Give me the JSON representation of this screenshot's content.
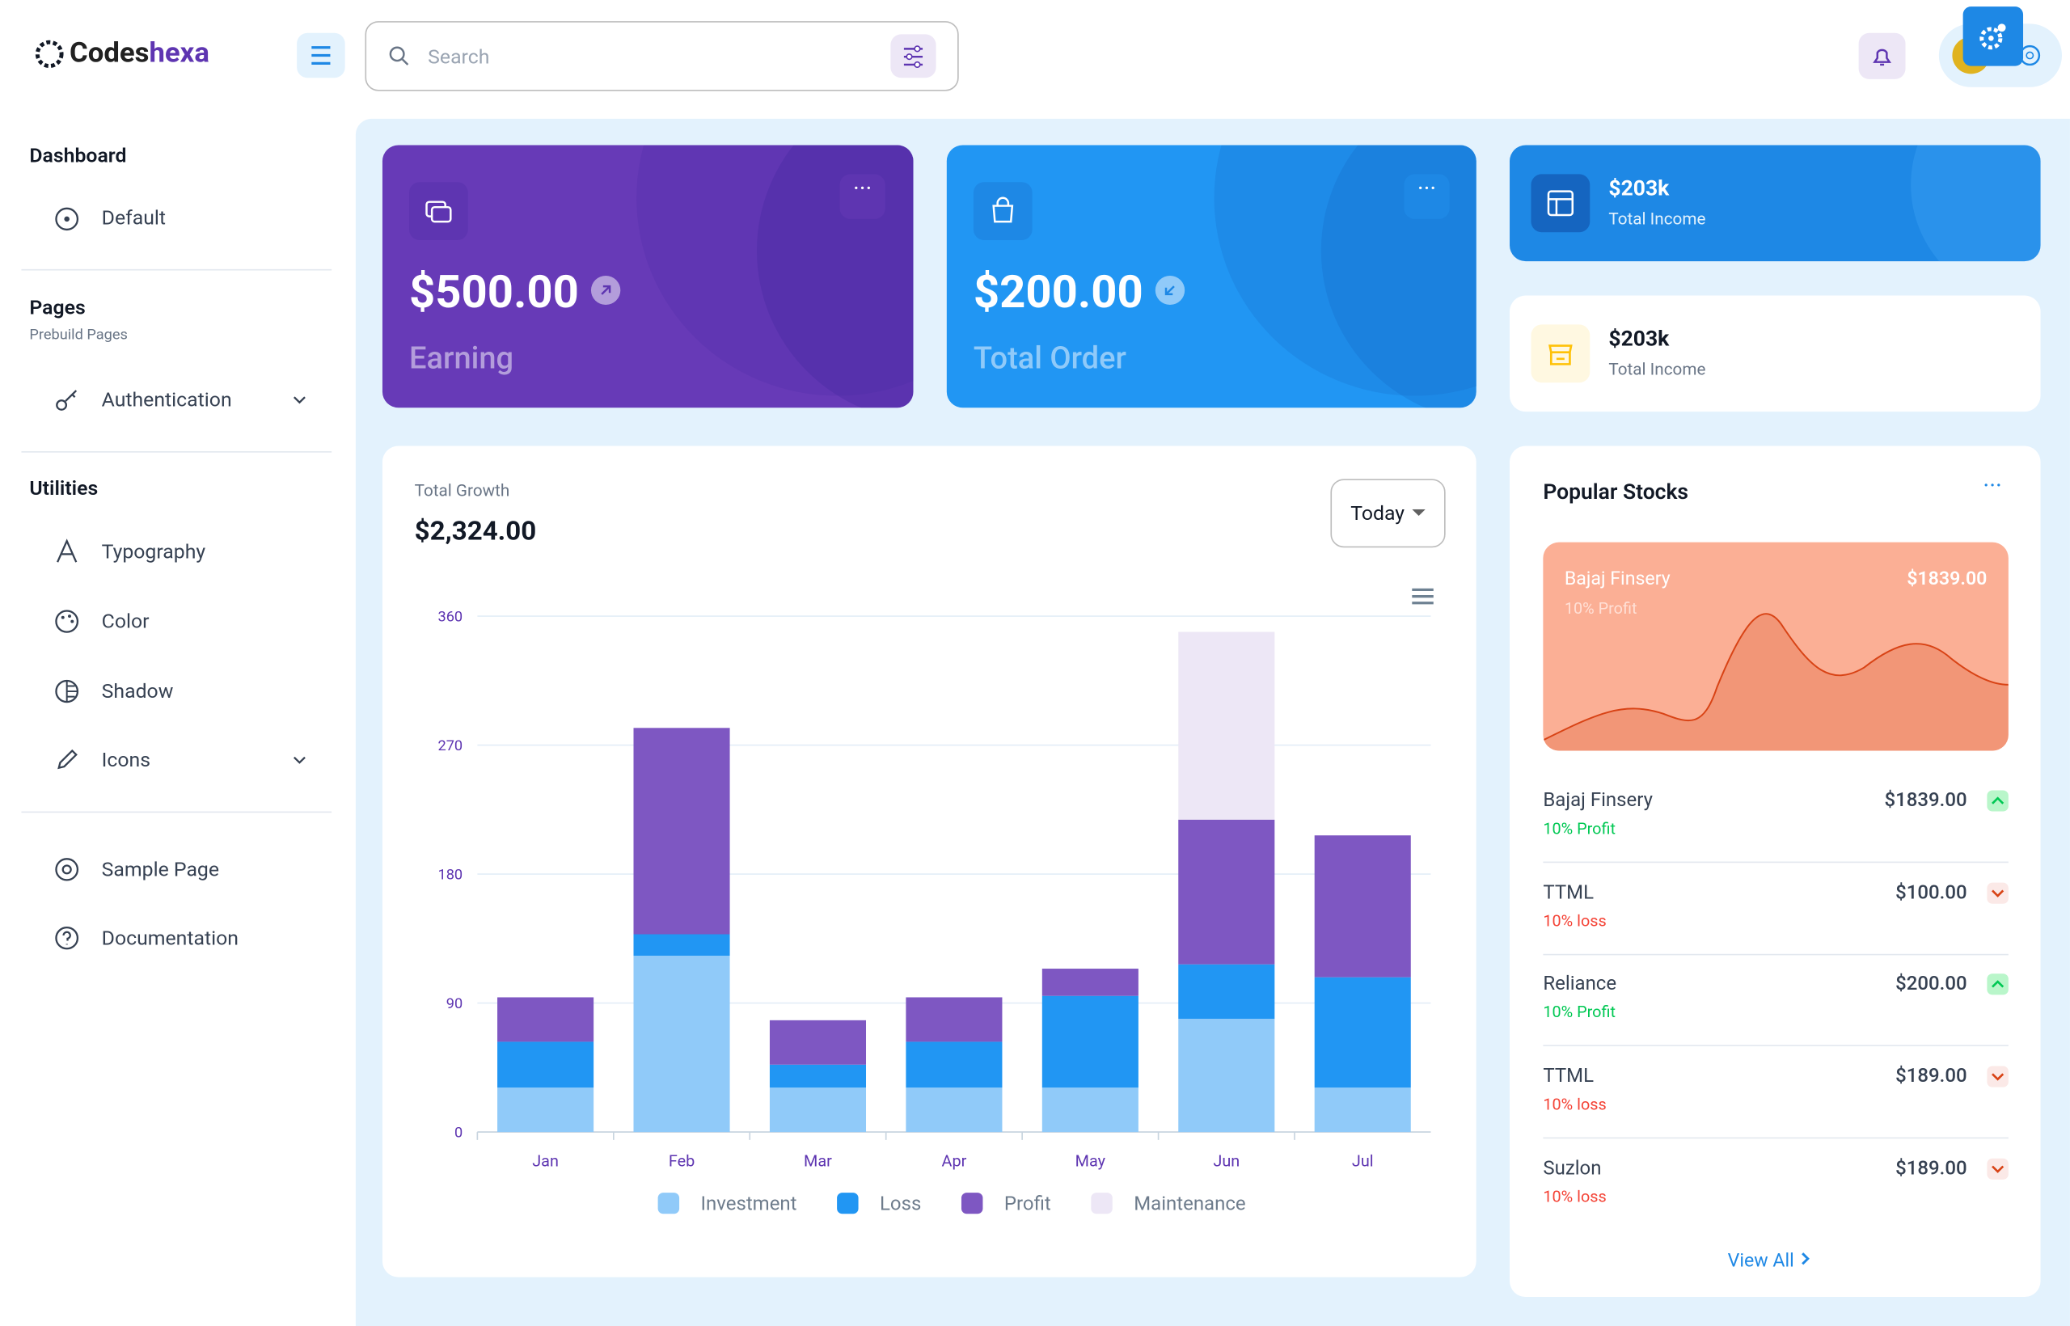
{
  "header": {
    "brand_prefix": "Codes",
    "brand_suffix": "hexa",
    "search_placeholder": "Search"
  },
  "sidebar": {
    "dashboard": "Dashboard",
    "default": "Default",
    "pages": "Pages",
    "pages_sub": "Prebuild Pages",
    "authentication": "Authentication",
    "utilities": "Utilities",
    "typography": "Typography",
    "color": "Color",
    "shadow": "Shadow",
    "icons": "Icons",
    "sample_page": "Sample Page",
    "documentation": "Documentation"
  },
  "cards": [
    {
      "value": "$500.00",
      "label": "Earning"
    },
    {
      "value": "$200.00",
      "label": "Total Order"
    },
    {
      "value": "$203k",
      "label": "Total Income"
    },
    {
      "value": "$203k",
      "label": "Total Income"
    }
  ],
  "growth": {
    "label": "Total Growth",
    "value": "$2,324.00",
    "period": "Today"
  },
  "chart_data": {
    "type": "bar",
    "stacked": true,
    "categories": [
      "Jan",
      "Feb",
      "Mar",
      "Apr",
      "May",
      "Jun",
      "Jul"
    ],
    "series": [
      {
        "name": "Investment",
        "color": "#90caf9",
        "values": [
          31,
          123,
          31,
          31,
          31,
          79,
          31
        ]
      },
      {
        "name": "Loss",
        "color": "#2196f3",
        "values": [
          32,
          15,
          16,
          32,
          64,
          38,
          77
        ]
      },
      {
        "name": "Profit",
        "color": "#7e57c2",
        "values": [
          31,
          144,
          31,
          31,
          19,
          101,
          99
        ]
      },
      {
        "name": "Maintenance",
        "color": "#ede7f6",
        "values": [
          0,
          0,
          0,
          0,
          0,
          131,
          0
        ]
      }
    ],
    "ylim": [
      0,
      360
    ],
    "yticks": [
      0,
      90,
      180,
      270,
      360
    ],
    "grid": true
  },
  "stocks": {
    "title": "Popular Stocks",
    "featured": {
      "name": "Bajaj Finsery",
      "price": "$1839.00",
      "change": "10% Profit"
    },
    "rows": [
      {
        "name": "Bajaj Finsery",
        "price": "$1839.00",
        "change": "10% Profit",
        "trend": "up"
      },
      {
        "name": "TTML",
        "price": "$100.00",
        "change": "10% loss",
        "trend": "down"
      },
      {
        "name": "Reliance",
        "price": "$200.00",
        "change": "10% Profit",
        "trend": "up"
      },
      {
        "name": "TTML",
        "price": "$189.00",
        "change": "10% loss",
        "trend": "down"
      },
      {
        "name": "Suzlon",
        "price": "$189.00",
        "change": "10% loss",
        "trend": "down"
      }
    ],
    "view_all": "View All"
  }
}
